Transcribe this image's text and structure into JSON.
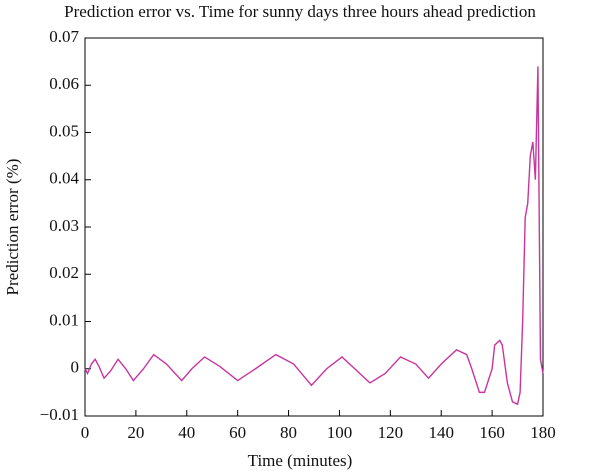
{
  "chart_data": {
    "type": "line",
    "title": "Prediction error vs. Time for sunny days three hours ahead prediction",
    "xlabel": "Time (minutes)",
    "ylabel": "Prediction error (%)",
    "x": [
      0,
      1,
      2.5,
      4,
      5.5,
      7.5,
      10,
      13,
      16,
      19,
      23,
      27,
      32,
      38,
      42,
      47,
      53,
      60,
      67,
      75,
      82,
      89,
      95,
      101,
      106,
      112,
      118,
      124,
      130,
      135,
      140,
      146,
      150,
      152,
      155,
      157,
      160,
      161,
      163,
      164,
      166,
      168,
      170,
      171,
      172,
      173,
      174,
      175,
      176,
      177,
      178,
      179,
      180
    ],
    "values": [
      0,
      -0.001,
      0.001,
      0.002,
      0.0005,
      -0.002,
      -0.0005,
      0.002,
      0,
      -0.0025,
      0,
      0.003,
      0.001,
      -0.0025,
      0,
      0.0025,
      0.0005,
      -0.0025,
      0,
      0.003,
      0.001,
      -0.0035,
      0,
      0.0025,
      0,
      -0.003,
      -0.001,
      0.0025,
      0.001,
      -0.002,
      0.001,
      0.004,
      0.003,
      0,
      -0.005,
      -0.005,
      0,
      0.005,
      0.006,
      0.005,
      -0.003,
      -0.007,
      -0.0075,
      -0.005,
      0.01,
      0.032,
      0.035,
      0.045,
      0.048,
      0.04,
      0.064,
      0.002,
      -0.001
    ],
    "color": "#c8359e",
    "xlim": [
      0,
      180
    ],
    "xticks": [
      0,
      20,
      40,
      60,
      80,
      100,
      120,
      140,
      160,
      180
    ],
    "ylim": [
      -0.01,
      0.07
    ],
    "yticks": [
      {
        "value": -0.01,
        "label": "−0.01"
      },
      0,
      0.01,
      0.02,
      0.03,
      0.04,
      0.05,
      0.06,
      0.07
    ]
  }
}
